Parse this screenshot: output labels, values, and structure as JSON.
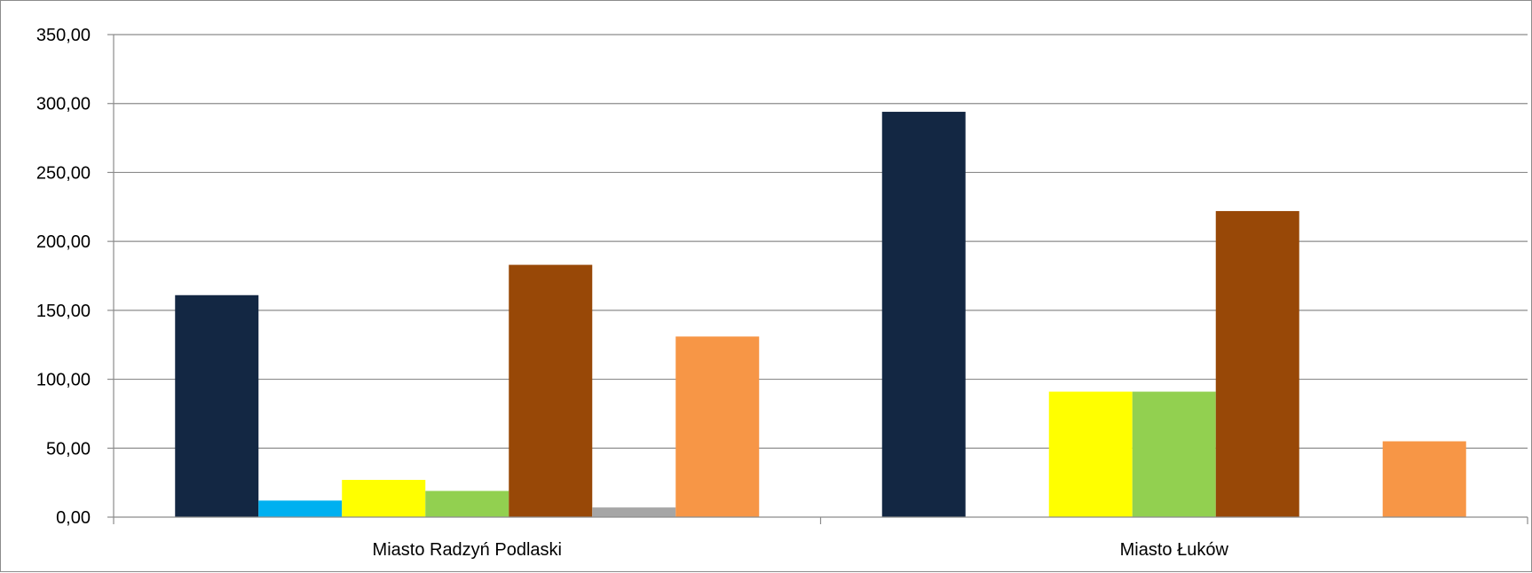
{
  "chart_data": {
    "type": "bar",
    "categories": [
      "Miasto Radzyń Podlaski",
      "Miasto Łuków"
    ],
    "series": [
      {
        "color": "#132743",
        "values": [
          161,
          294
        ]
      },
      {
        "color": "#00b0f0",
        "values": [
          12,
          0
        ]
      },
      {
        "color": "#ffff00",
        "values": [
          27,
          91
        ]
      },
      {
        "color": "#92d050",
        "values": [
          19,
          91
        ]
      },
      {
        "color": "#984807",
        "values": [
          183,
          222
        ]
      },
      {
        "color": "#a6a6a6",
        "values": [
          7,
          0
        ]
      },
      {
        "color": "#f79646",
        "values": [
          131,
          55
        ]
      }
    ],
    "ylim": [
      0,
      350
    ],
    "yticks": [
      "0,00",
      "50,00",
      "100,00",
      "150,00",
      "200,00",
      "250,00",
      "300,00",
      "350,00"
    ],
    "grid": true,
    "legend": "none",
    "title": "",
    "xlabel": "",
    "ylabel": ""
  }
}
